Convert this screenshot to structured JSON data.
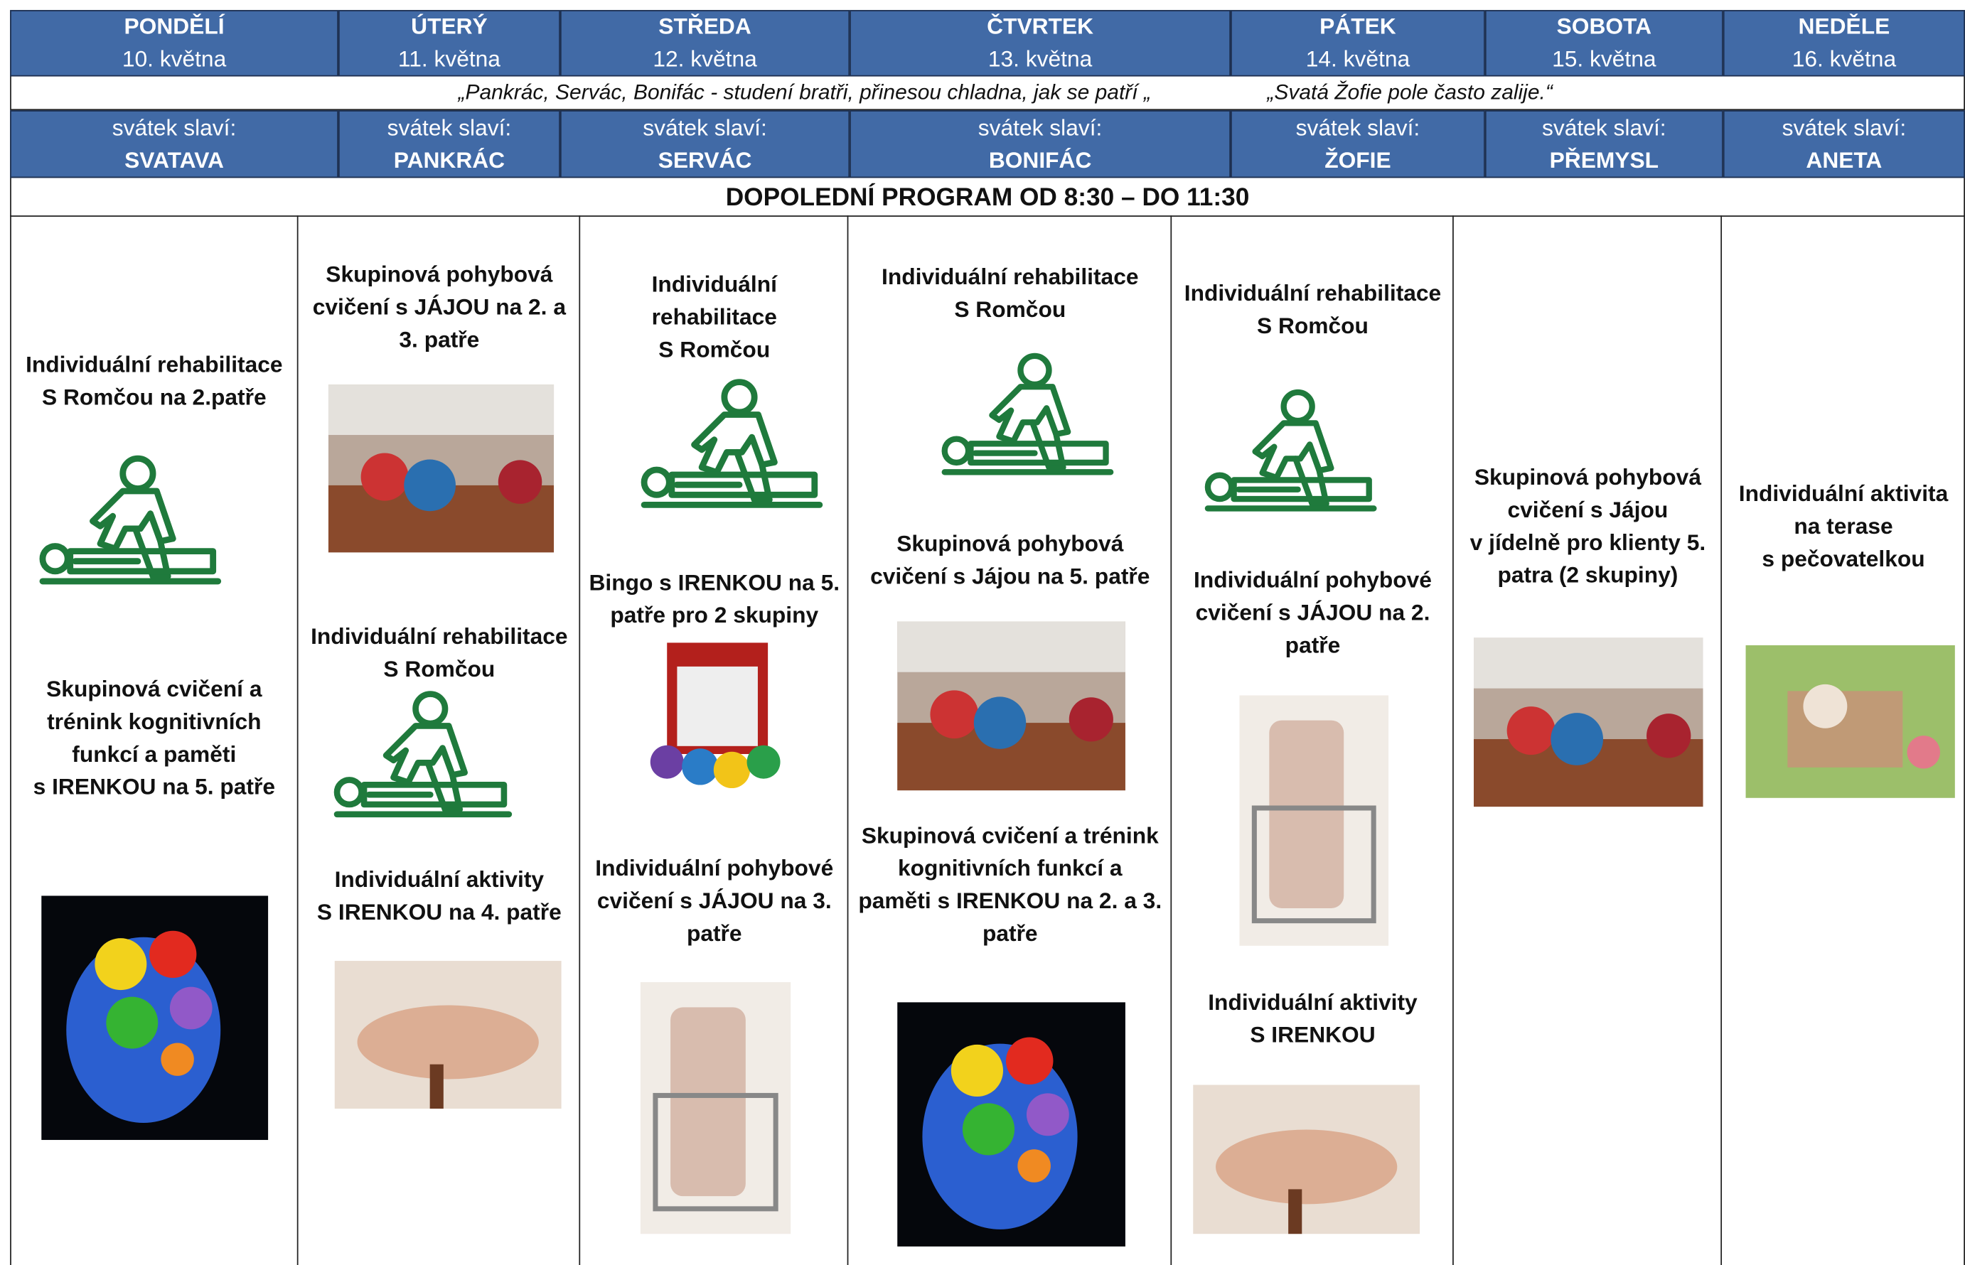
{
  "days": [
    {
      "name": "PONDĚLÍ",
      "date": "10. května",
      "nameday_label": "svátek slaví:",
      "nameday": "SVATAVA"
    },
    {
      "name": "ÚTERÝ",
      "date": "11. května",
      "nameday_label": "svátek slaví:",
      "nameday": "PANKRÁC"
    },
    {
      "name": "STŘEDA",
      "date": "12. května",
      "nameday_label": "svátek slaví:",
      "nameday": "SERVÁC"
    },
    {
      "name": "ČTVRTEK",
      "date": "13. května",
      "nameday_label": "svátek slaví:",
      "nameday": "BONIFÁC"
    },
    {
      "name": "PÁTEK",
      "date": "14. května",
      "nameday_label": "svátek slaví:",
      "nameday": "ŽOFIE"
    },
    {
      "name": "SOBOTA",
      "date": "15. května",
      "nameday_label": "svátek slaví:",
      "nameday": "PŘEMYSL"
    },
    {
      "name": "NEDĚLE",
      "date": "16. května",
      "nameday_label": "svátek slaví:",
      "nameday": "ANETA"
    }
  ],
  "quotes": [
    "„Pankrác, Servác, Bonifác - studení bratři, přinesou chladna, jak se patří „",
    "„Svatá Žofie pole často zalije.“"
  ],
  "program_title": "DOPOLEDNÍ PROGRAM OD 8:30 – DO 11:30",
  "columns": [
    {
      "activities": [
        {
          "lines": [
            "Individuální rehabilitace",
            "S Romčou na 2.patře"
          ]
        },
        {
          "lines": [
            "Skupinová cvičení a",
            "trénink kognitivních",
            "funkcí a paměti",
            "s IRENKOU na 5. patře"
          ]
        }
      ]
    },
    {
      "activities": [
        {
          "lines": [
            "Skupinová pohybová",
            "cvičení s JÁJOU na 2. a",
            "3. patře"
          ]
        },
        {
          "lines": [
            "Individuální rehabilitace",
            "S Romčou"
          ]
        },
        {
          "lines": [
            "Individuální aktivity",
            "S IRENKOU na 4. patře"
          ]
        }
      ]
    },
    {
      "activities": [
        {
          "lines": [
            "Individuální",
            "rehabilitace",
            "S Romčou"
          ]
        },
        {
          "lines": [
            "Bingo s IRENKOU na 5.",
            "patře pro 2 skupiny"
          ]
        },
        {
          "lines": [
            "Individuální pohybové",
            "cvičení s JÁJOU na 3.",
            "patře"
          ]
        }
      ]
    },
    {
      "activities": [
        {
          "lines": [
            "Individuální rehabilitace",
            "S Romčou"
          ]
        },
        {
          "lines": [
            "Skupinová pohybová",
            "cvičení s Jájou na 5. patře"
          ]
        },
        {
          "lines": [
            "Skupinová cvičení a trénink",
            "kognitivních funkcí a",
            "paměti s IRENKOU na 2. a 3.",
            "patře"
          ]
        }
      ]
    },
    {
      "activities": [
        {
          "lines": [
            "Individuální rehabilitace",
            "S Romčou"
          ]
        },
        {
          "lines": [
            "Individuální pohybové",
            "cvičení s JÁJOU na 2.",
            "patře"
          ]
        },
        {
          "lines": [
            "Individuální aktivity",
            "S IRENKOU"
          ]
        }
      ]
    },
    {
      "activities": [
        {
          "lines": [
            "Skupinová pohybová",
            "cvičení s Jájou",
            "v jídelně pro klienty 5.",
            "patra (2 skupiny)"
          ]
        }
      ]
    },
    {
      "activities": [
        {
          "lines": [
            "Individuální aktivita",
            "na terase",
            "s pečovatelkou"
          ]
        }
      ]
    }
  ]
}
